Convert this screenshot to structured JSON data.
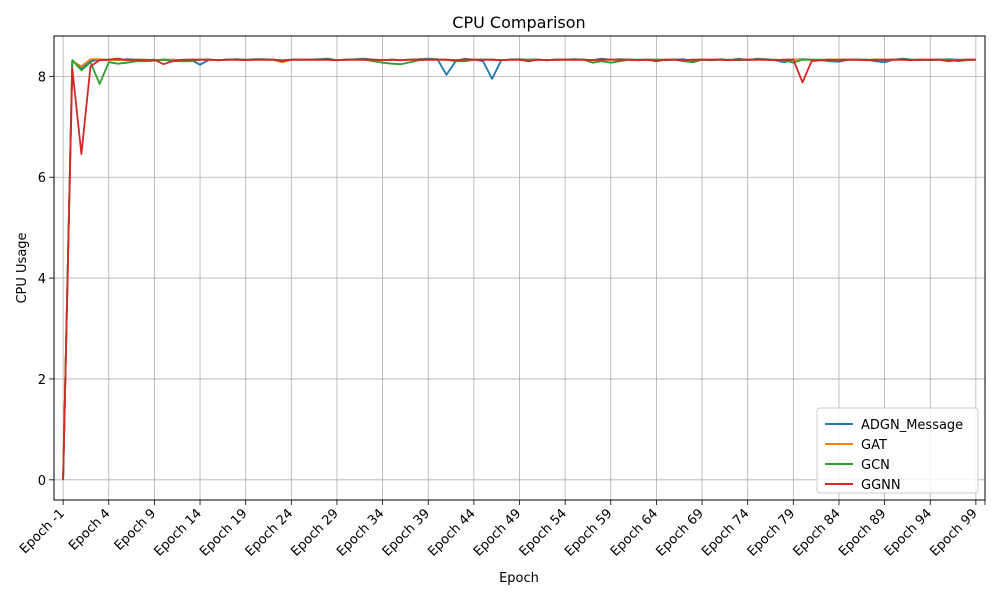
{
  "chart_data": {
    "type": "line",
    "title": "CPU Comparison",
    "xlabel": "Epoch",
    "ylabel": "CPU Usage",
    "x_categories": [
      "Epoch -1",
      "Epoch 0",
      "Epoch 1",
      "Epoch 2",
      "Epoch 3",
      "Epoch 4",
      "Epoch 5",
      "Epoch 6",
      "Epoch 7",
      "Epoch 8",
      "Epoch 9",
      "Epoch 10",
      "Epoch 11",
      "Epoch 12",
      "Epoch 13",
      "Epoch 14",
      "Epoch 15",
      "Epoch 16",
      "Epoch 17",
      "Epoch 18",
      "Epoch 19",
      "Epoch 20",
      "Epoch 21",
      "Epoch 22",
      "Epoch 23",
      "Epoch 24",
      "Epoch 25",
      "Epoch 26",
      "Epoch 27",
      "Epoch 28",
      "Epoch 29",
      "Epoch 30",
      "Epoch 31",
      "Epoch 32",
      "Epoch 33",
      "Epoch 34",
      "Epoch 35",
      "Epoch 36",
      "Epoch 37",
      "Epoch 38",
      "Epoch 39",
      "Epoch 40",
      "Epoch 41",
      "Epoch 42",
      "Epoch 43",
      "Epoch 44",
      "Epoch 45",
      "Epoch 46",
      "Epoch 47",
      "Epoch 48",
      "Epoch 49",
      "Epoch 50",
      "Epoch 51",
      "Epoch 52",
      "Epoch 53",
      "Epoch 54",
      "Epoch 55",
      "Epoch 56",
      "Epoch 57",
      "Epoch 58",
      "Epoch 59",
      "Epoch 60",
      "Epoch 61",
      "Epoch 62",
      "Epoch 63",
      "Epoch 64",
      "Epoch 65",
      "Epoch 66",
      "Epoch 67",
      "Epoch 68",
      "Epoch 69",
      "Epoch 70",
      "Epoch 71",
      "Epoch 72",
      "Epoch 73",
      "Epoch 74",
      "Epoch 75",
      "Epoch 76",
      "Epoch 77",
      "Epoch 78",
      "Epoch 79",
      "Epoch 80",
      "Epoch 81",
      "Epoch 82",
      "Epoch 83",
      "Epoch 84",
      "Epoch 85",
      "Epoch 86",
      "Epoch 87",
      "Epoch 88",
      "Epoch 89",
      "Epoch 90",
      "Epoch 91",
      "Epoch 92",
      "Epoch 93",
      "Epoch 94",
      "Epoch 95",
      "Epoch 96",
      "Epoch 97",
      "Epoch 98",
      "Epoch 99"
    ],
    "tick_labels": [
      "Epoch -1",
      "Epoch 4",
      "Epoch 9",
      "Epoch 14",
      "Epoch 19",
      "Epoch 24",
      "Epoch 29",
      "Epoch 34",
      "Epoch 39",
      "Epoch 44",
      "Epoch 49",
      "Epoch 54",
      "Epoch 59",
      "Epoch 64",
      "Epoch 69",
      "Epoch 74",
      "Epoch 79",
      "Epoch 84",
      "Epoch 89",
      "Epoch 94",
      "Epoch 99"
    ],
    "ylim": [
      -0.4,
      8.8
    ],
    "yticks": [
      0,
      2,
      4,
      6,
      8
    ],
    "grid": true,
    "legend_position": "lower-right",
    "series": [
      {
        "name": "ADGN_Message",
        "color": "#1f77b4",
        "values": [
          0.0,
          8.32,
          8.15,
          8.3,
          8.33,
          8.33,
          8.32,
          8.34,
          8.33,
          8.33,
          8.32,
          8.33,
          8.33,
          8.32,
          8.33,
          8.23,
          8.33,
          8.32,
          8.33,
          8.34,
          8.33,
          8.34,
          8.34,
          8.33,
          8.32,
          8.33,
          8.33,
          8.33,
          8.34,
          8.35,
          8.32,
          8.33,
          8.34,
          8.35,
          8.33,
          8.32,
          8.33,
          8.32,
          8.33,
          8.34,
          8.35,
          8.34,
          8.03,
          8.3,
          8.35,
          8.33,
          8.3,
          7.95,
          8.32,
          8.33,
          8.34,
          8.33,
          8.33,
          8.32,
          8.33,
          8.33,
          8.34,
          8.33,
          8.32,
          8.35,
          8.33,
          8.34,
          8.33,
          8.32,
          8.33,
          8.33,
          8.32,
          8.33,
          8.34,
          8.3,
          8.33,
          8.32,
          8.34,
          8.32,
          8.35,
          8.32,
          8.35,
          8.34,
          8.32,
          8.28,
          8.33,
          8.34,
          8.33,
          8.32,
          8.3,
          8.29,
          8.33,
          8.33,
          8.33,
          8.3,
          8.28,
          8.33,
          8.35,
          8.33,
          8.32,
          8.33,
          8.33,
          8.34,
          8.33,
          8.33,
          8.33
        ]
      },
      {
        "name": "GAT",
        "color": "#ff7f0e",
        "values": [
          0.0,
          8.3,
          8.2,
          8.34,
          8.34,
          8.32,
          8.33,
          8.32,
          8.33,
          8.33,
          8.32,
          8.33,
          8.33,
          8.32,
          8.33,
          8.33,
          8.33,
          8.32,
          8.33,
          8.33,
          8.33,
          8.33,
          8.33,
          8.33,
          8.28,
          8.33,
          8.33,
          8.33,
          8.33,
          8.33,
          8.32,
          8.33,
          8.33,
          8.33,
          8.33,
          8.32,
          8.33,
          8.32,
          8.33,
          8.33,
          8.33,
          8.33,
          8.33,
          8.32,
          8.33,
          8.33,
          8.33,
          8.33,
          8.32,
          8.33,
          8.33,
          8.33,
          8.33,
          8.32,
          8.33,
          8.33,
          8.33,
          8.33,
          8.32,
          8.33,
          8.33,
          8.33,
          8.33,
          8.32,
          8.33,
          8.33,
          8.33,
          8.33,
          8.32,
          8.33,
          8.33,
          8.33,
          8.33,
          8.32,
          8.33,
          8.33,
          8.33,
          8.33,
          8.32,
          8.33,
          8.33,
          8.33,
          8.33,
          8.32,
          8.33,
          8.33,
          8.33,
          8.33,
          8.32,
          8.33,
          8.33,
          8.33,
          8.33,
          8.32,
          8.33,
          8.33,
          8.33,
          8.33,
          8.32,
          8.33,
          8.33
        ]
      },
      {
        "name": "GCN",
        "color": "#2ca02c",
        "values": [
          0.0,
          8.32,
          8.12,
          8.28,
          7.85,
          8.28,
          8.25,
          8.27,
          8.3,
          8.3,
          8.31,
          8.33,
          8.3,
          8.3,
          8.3,
          8.33,
          8.33,
          8.32,
          8.33,
          8.33,
          8.33,
          8.33,
          8.33,
          8.33,
          8.3,
          8.33,
          8.33,
          8.33,
          8.33,
          8.33,
          8.32,
          8.33,
          8.33,
          8.33,
          8.3,
          8.27,
          8.25,
          8.24,
          8.28,
          8.32,
          8.33,
          8.33,
          8.33,
          8.3,
          8.3,
          8.33,
          8.33,
          8.33,
          8.32,
          8.33,
          8.33,
          8.33,
          8.33,
          8.32,
          8.33,
          8.33,
          8.33,
          8.33,
          8.27,
          8.3,
          8.27,
          8.3,
          8.33,
          8.33,
          8.33,
          8.33,
          8.33,
          8.33,
          8.3,
          8.28,
          8.33,
          8.32,
          8.33,
          8.33,
          8.32,
          8.33,
          8.33,
          8.33,
          8.33,
          8.32,
          8.27,
          8.33,
          8.33,
          8.33,
          8.33,
          8.32,
          8.33,
          8.33,
          8.33,
          8.33,
          8.32,
          8.33,
          8.33,
          8.33,
          8.33,
          8.32,
          8.33,
          8.33,
          8.3,
          8.32,
          8.33
        ]
      },
      {
        "name": "GGNN",
        "color": "#d62728",
        "values": [
          0.0,
          8.15,
          6.46,
          8.2,
          8.32,
          8.33,
          8.35,
          8.32,
          8.33,
          8.32,
          8.33,
          8.24,
          8.3,
          8.33,
          8.33,
          8.33,
          8.33,
          8.32,
          8.33,
          8.33,
          8.32,
          8.33,
          8.33,
          8.33,
          8.3,
          8.33,
          8.33,
          8.33,
          8.33,
          8.33,
          8.32,
          8.33,
          8.33,
          8.33,
          8.33,
          8.32,
          8.33,
          8.32,
          8.33,
          8.33,
          8.33,
          8.33,
          8.33,
          8.32,
          8.33,
          8.33,
          8.33,
          8.33,
          8.32,
          8.33,
          8.33,
          8.3,
          8.33,
          8.32,
          8.33,
          8.33,
          8.33,
          8.33,
          8.32,
          8.33,
          8.33,
          8.33,
          8.33,
          8.32,
          8.33,
          8.3,
          8.33,
          8.33,
          8.32,
          8.33,
          8.33,
          8.33,
          8.33,
          8.32,
          8.33,
          8.33,
          8.33,
          8.33,
          8.32,
          8.33,
          8.33,
          7.88,
          8.3,
          8.32,
          8.33,
          8.33,
          8.33,
          8.33,
          8.32,
          8.33,
          8.33,
          8.33,
          8.33,
          8.32,
          8.33,
          8.33,
          8.33,
          8.3,
          8.32,
          8.33,
          8.33
        ]
      }
    ]
  }
}
